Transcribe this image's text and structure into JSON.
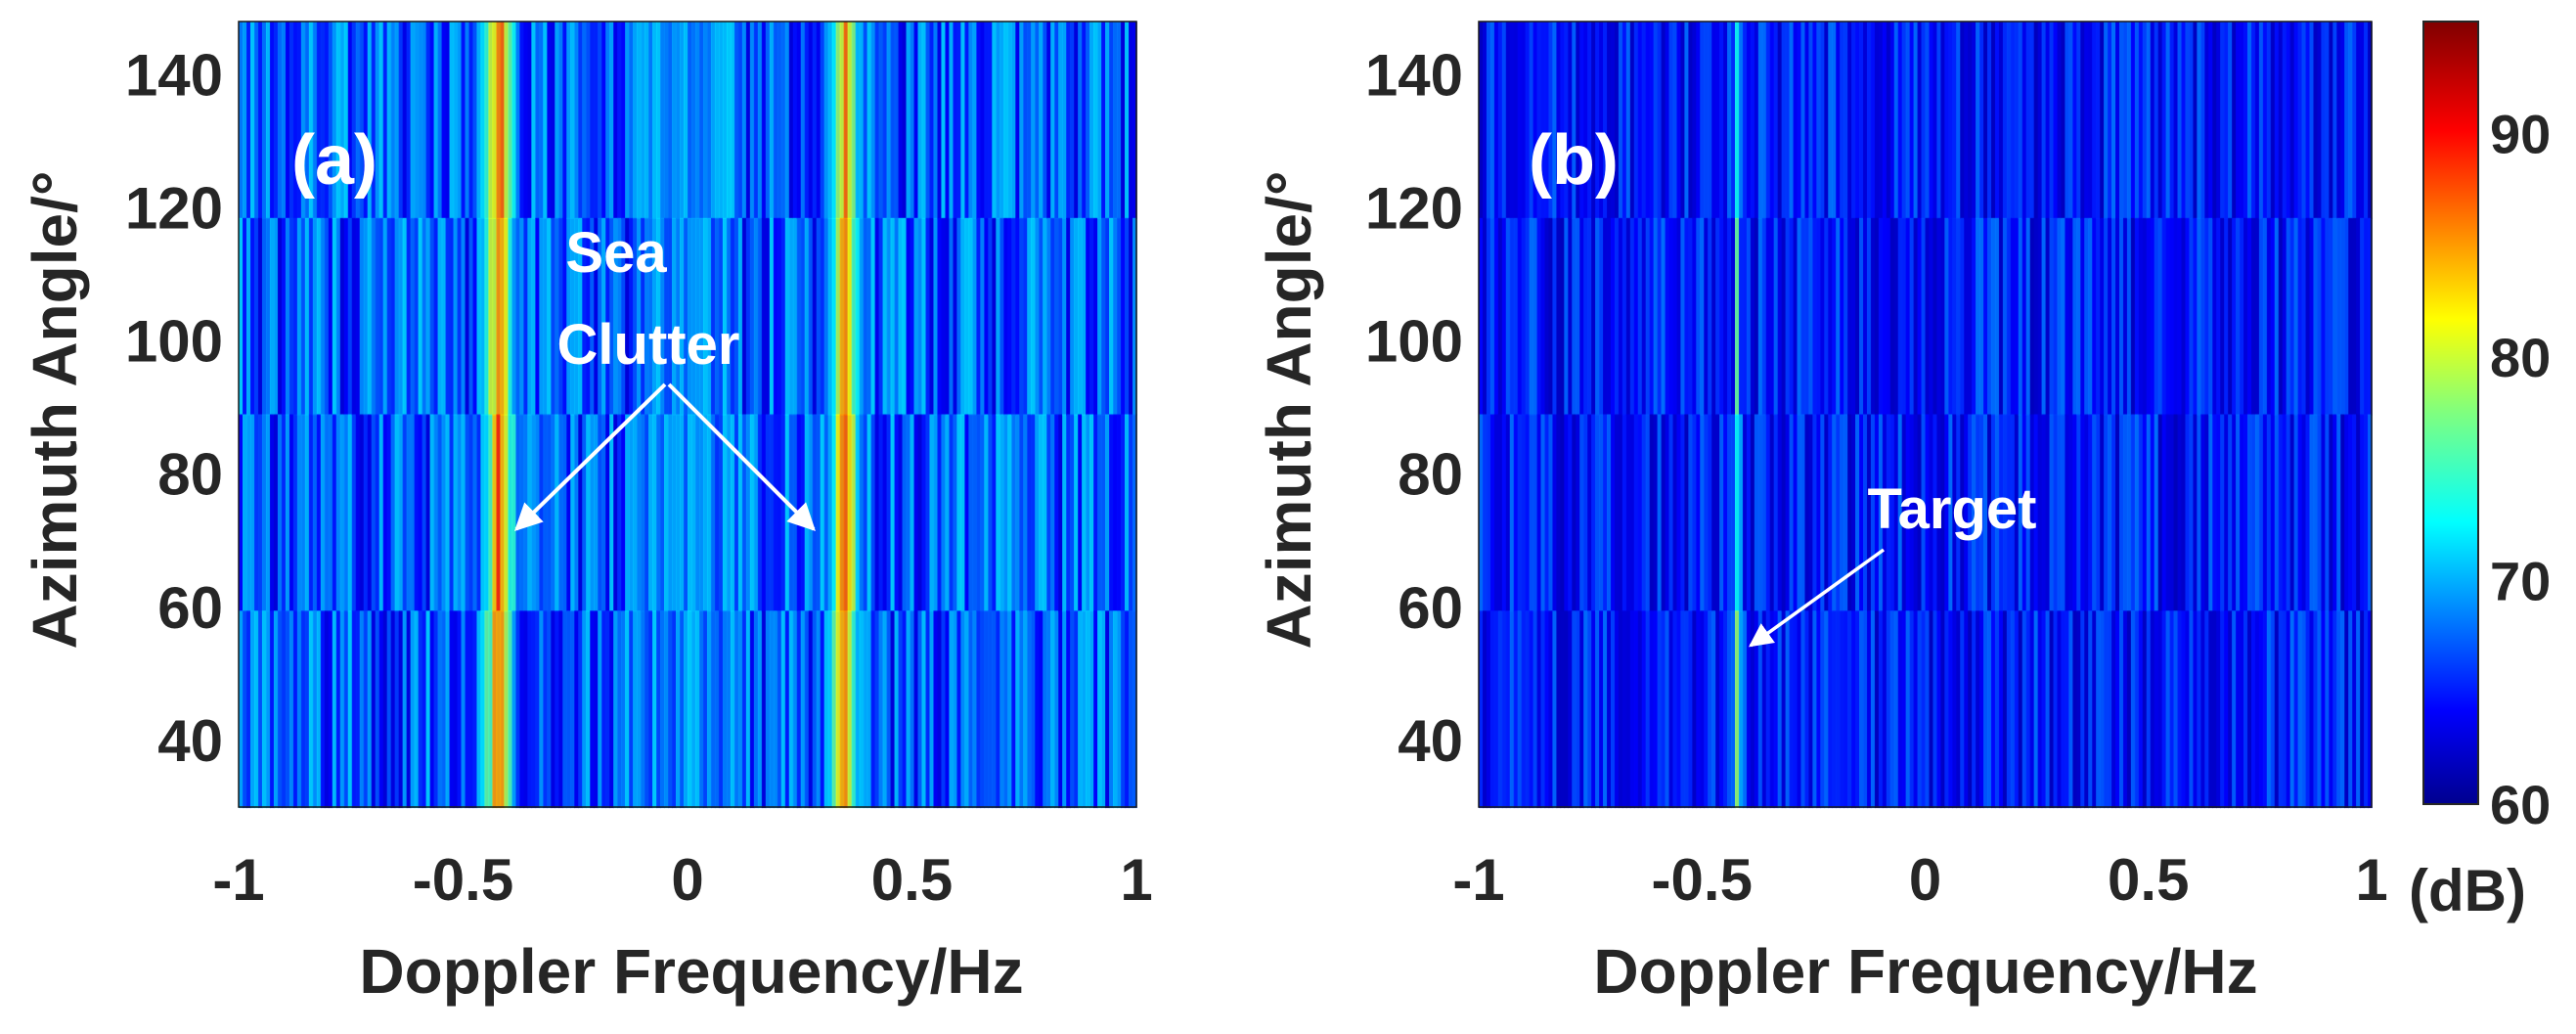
{
  "chart_data": [
    {
      "type": "heatmap",
      "panel_label": "(a)",
      "xlabel": "Doppler Frequency/Hz",
      "ylabel": "Azimuth Angle/°",
      "xlim": [
        -1,
        1
      ],
      "ylim": [
        30,
        148
      ],
      "xticks": [
        -1,
        -0.5,
        0,
        0.5,
        1
      ],
      "xtick_labels": [
        "-1",
        "-0.5",
        "0",
        "0.5",
        "1"
      ],
      "yticks": [
        40,
        60,
        80,
        100,
        120,
        140
      ],
      "ytick_labels": [
        "40",
        "60",
        "80",
        "100",
        "120",
        "140"
      ],
      "colormap": "jet",
      "clim_db": [
        60,
        95
      ],
      "features": [
        {
          "name": "sea clutter band",
          "doppler_hz": -0.42,
          "peak_db": 88
        },
        {
          "name": "sea clutter band",
          "doppler_hz": 0.35,
          "peak_db": 86
        }
      ],
      "annotation": {
        "lines": [
          "Sea",
          "Clutter"
        ],
        "arrow_targets": [
          {
            "doppler_hz": -0.38,
            "azimuth_deg": 72
          },
          {
            "doppler_hz": 0.28,
            "azimuth_deg": 72
          }
        ]
      }
    },
    {
      "type": "heatmap",
      "panel_label": "(b)",
      "xlabel": "Doppler Frequency/Hz",
      "ylabel": "Azimuth Angle/°",
      "xlim": [
        -1,
        1
      ],
      "ylim": [
        30,
        148
      ],
      "xticks": [
        -1,
        -0.5,
        0,
        0.5,
        1
      ],
      "xtick_labels": [
        "-1",
        "-0.5",
        "0",
        "0.5",
        "1"
      ],
      "yticks": [
        40,
        60,
        80,
        100,
        120,
        140
      ],
      "ytick_labels": [
        "40",
        "60",
        "80",
        "100",
        "120",
        "140"
      ],
      "colormap": "jet",
      "clim_db": [
        60,
        95
      ],
      "features": [
        {
          "name": "target line",
          "doppler_hz": -0.42,
          "peak_db": 78
        }
      ],
      "annotation": {
        "lines": [
          "Target"
        ],
        "arrow_targets": [
          {
            "doppler_hz": -0.43,
            "azimuth_deg": 55
          }
        ]
      }
    }
  ],
  "colorbar": {
    "ticks": [
      60,
      70,
      80,
      90
    ],
    "tick_labels": [
      "60",
      "70",
      "80",
      "90"
    ],
    "range": [
      60,
      95
    ],
    "unit": "(dB)"
  }
}
